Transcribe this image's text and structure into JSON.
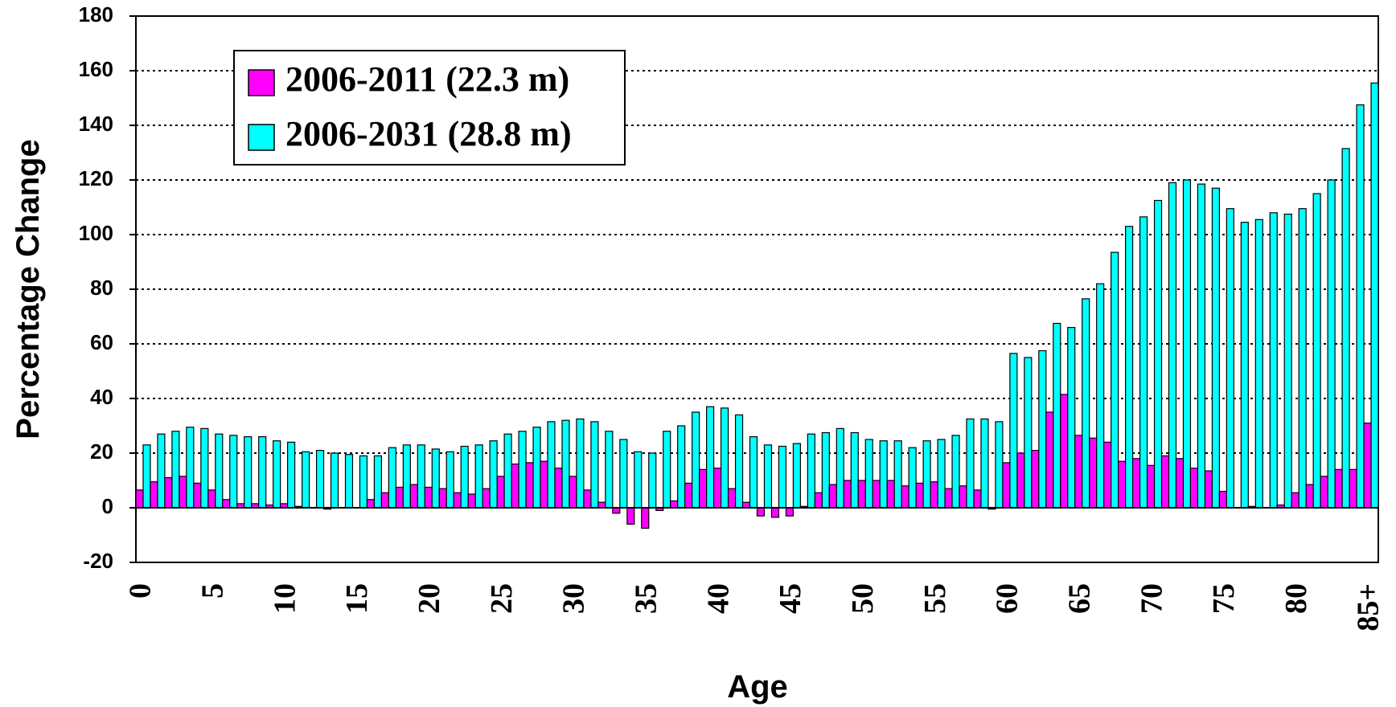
{
  "chart_data": {
    "type": "bar",
    "x_label": "Age",
    "y_label": "Percentage Change",
    "categories": [
      "0",
      null,
      null,
      null,
      null,
      "5",
      null,
      null,
      null,
      null,
      "10",
      null,
      null,
      null,
      null,
      "15",
      null,
      null,
      null,
      null,
      "20",
      null,
      null,
      null,
      null,
      "25",
      null,
      null,
      null,
      null,
      "30",
      null,
      null,
      null,
      null,
      "35",
      null,
      null,
      null,
      null,
      "40",
      null,
      null,
      null,
      null,
      "45",
      null,
      null,
      null,
      null,
      "50",
      null,
      null,
      null,
      null,
      "55",
      null,
      null,
      null,
      null,
      "60",
      null,
      null,
      null,
      null,
      "65",
      null,
      null,
      null,
      null,
      "70",
      null,
      null,
      null,
      null,
      "75",
      null,
      null,
      null,
      null,
      "80",
      null,
      null,
      null,
      null,
      "85+"
    ],
    "series": [
      {
        "name": "2006-2011 (22.3 m)",
        "color": "#ff00ff",
        "values": [
          6.5,
          9.5,
          11,
          11.5,
          9,
          6.5,
          3,
          1.5,
          1.5,
          1,
          1.5,
          0.5,
          0,
          -0.5,
          0,
          0,
          3,
          5.5,
          7.5,
          8.5,
          7.5,
          7,
          5.5,
          5,
          7,
          11.5,
          16,
          16.5,
          17,
          14.5,
          11.5,
          6.5,
          2,
          -2,
          -6,
          -7.5,
          -1,
          2.5,
          9,
          14,
          14.5,
          7,
          2,
          -3,
          -3.5,
          -3,
          0.5,
          5.5,
          8.5,
          10,
          10,
          10,
          10,
          8,
          9,
          9.5,
          7,
          8,
          6.5,
          -0.5,
          16.5,
          20,
          21,
          35,
          41.5,
          26.5,
          25.5,
          24,
          17,
          18,
          15.5,
          19,
          18,
          14.5,
          13.5,
          6,
          0,
          0.5,
          0,
          1,
          5.5,
          8.5,
          11.5,
          14,
          14,
          31
        ]
      },
      {
        "name": "2006-2031 (28.8 m)",
        "color": "#00ffff",
        "values": [
          23,
          27,
          28,
          29.5,
          29,
          27,
          26.5,
          26,
          26,
          24.5,
          24,
          20.5,
          21,
          20,
          19.5,
          19,
          19,
          22,
          23,
          23,
          21.5,
          20.5,
          22.5,
          23,
          24.5,
          27,
          28,
          29.5,
          31.5,
          32,
          32.5,
          31.5,
          28,
          25,
          20.5,
          20,
          28,
          30,
          35,
          37,
          36.5,
          34,
          26,
          23,
          22.5,
          23.5,
          27,
          27.5,
          29,
          27.5,
          25,
          24.5,
          24.5,
          22,
          24.5,
          25,
          26.5,
          32.5,
          32.5,
          31.5,
          56.5,
          55,
          57.5,
          67.5,
          66,
          76.5,
          82,
          93.5,
          103,
          106.5,
          112.5,
          119,
          120,
          118.5,
          117,
          109.5,
          104.5,
          105.5,
          108,
          107.5,
          109.5,
          115,
          120,
          131.5,
          147.5,
          155.5
        ]
      }
    ],
    "ylim": [
      -20,
      180
    ],
    "yticks": [
      -20,
      0,
      20,
      40,
      60,
      80,
      100,
      120,
      140,
      160,
      180
    ],
    "grid": true,
    "legend": "upper left"
  }
}
